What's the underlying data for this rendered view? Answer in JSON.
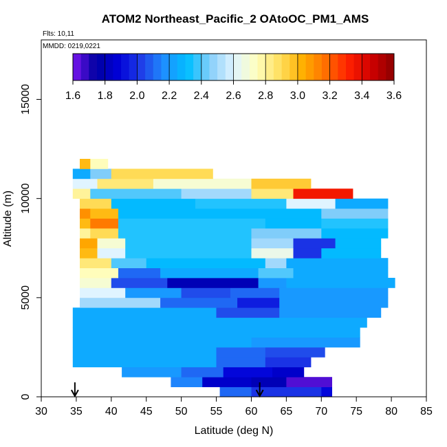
{
  "chart_data": {
    "type": "heatmap",
    "title": "ATOM2 Northeast_Pacific_2 OAtoOC_PM1_AMS",
    "flights_note": "Flts: 10,11",
    "date_note": "MMDD: 0219,0221",
    "xlabel": "Latitude (deg N)",
    "ylabel": "Altitude (m)",
    "xlim": [
      30,
      85
    ],
    "ylim": [
      0,
      18000
    ],
    "x_ticks": [
      "30",
      "35",
      "40",
      "45",
      "50",
      "55",
      "60",
      "65",
      "70",
      "75",
      "80",
      "85"
    ],
    "y_ticks": [
      "0",
      "5000",
      "10000",
      "15000"
    ],
    "colorbar": {
      "min": 1.6,
      "max": 3.6,
      "tick_labels": [
        "1.6",
        "1.8",
        "2.0",
        "2.2",
        "2.4",
        "2.6",
        "2.8",
        "3.0",
        "3.2",
        "3.4",
        "3.6"
      ],
      "colors": [
        "#7b16f0",
        "#0000a0",
        "#0000d8",
        "#2040e8",
        "#1e90ff",
        "#00bfff",
        "#87cefa",
        "#e0f4ff",
        "#ffffc0",
        "#ffe060",
        "#ffb000",
        "#ff7000",
        "#ff2000",
        "#d00000",
        "#8b0000"
      ]
    },
    "layers": [
      {
        "alt": [
          0,
          500
        ],
        "lat": [
          55.5,
          71.5
        ],
        "segments": [
          [
            55.5,
            60,
            2.1
          ],
          [
            60,
            70,
            2.0
          ],
          [
            70,
            71.5,
            1.9
          ]
        ]
      },
      {
        "alt": [
          500,
          1000
        ],
        "lat": [
          48.5,
          71.5
        ],
        "segments": [
          [
            48.5,
            53,
            2.15
          ],
          [
            53,
            60,
            1.85
          ],
          [
            60,
            65,
            1.8
          ],
          [
            65,
            71.5,
            1.65
          ]
        ]
      },
      {
        "alt": [
          1000,
          1500
        ],
        "lat": [
          41.5,
          67.5
        ],
        "segments": [
          [
            41.5,
            50,
            2.2
          ],
          [
            50,
            56,
            2.1
          ],
          [
            56,
            63,
            1.9
          ],
          [
            63,
            67.5,
            1.85
          ]
        ]
      },
      {
        "alt": [
          1500,
          2000
        ],
        "lat": [
          34.5,
          68.5
        ],
        "segments": [
          [
            34.5,
            55,
            2.25
          ],
          [
            55,
            62,
            2.1
          ],
          [
            62,
            68.5,
            2.0
          ]
        ]
      },
      {
        "alt": [
          2000,
          2500
        ],
        "lat": [
          34.5,
          70.5
        ],
        "segments": [
          [
            34.5,
            55,
            2.25
          ],
          [
            55,
            62,
            2.1
          ],
          [
            62,
            70.5,
            2.05
          ]
        ]
      },
      {
        "alt": [
          2500,
          3000
        ],
        "lat": [
          34.5,
          75.5
        ],
        "segments": [
          [
            34.5,
            60,
            2.25
          ],
          [
            60,
            75.5,
            2.2
          ]
        ]
      },
      {
        "alt": [
          3000,
          3500
        ],
        "lat": [
          34.5,
          75.5
        ],
        "segments": [
          [
            34.5,
            75.5,
            2.25
          ]
        ]
      },
      {
        "alt": [
          3500,
          4000
        ],
        "lat": [
          34.5,
          76.5
        ],
        "segments": [
          [
            34.5,
            76.5,
            2.25
          ]
        ]
      },
      {
        "alt": [
          4000,
          4500
        ],
        "lat": [
          34.5,
          78.5
        ],
        "segments": [
          [
            34.5,
            55,
            2.25
          ],
          [
            55,
            64,
            2.05
          ],
          [
            64,
            78.5,
            2.2
          ]
        ]
      },
      {
        "alt": [
          4500,
          5000
        ],
        "lat": [
          35.5,
          79.5
        ],
        "segments": [
          [
            35.5,
            47,
            2.5
          ],
          [
            47,
            58,
            2.1
          ],
          [
            58,
            64,
            1.95
          ],
          [
            64,
            79.5,
            2.2
          ]
        ]
      },
      {
        "alt": [
          5000,
          5500
        ],
        "lat": [
          35.5,
          79.5
        ],
        "segments": [
          [
            35.5,
            42,
            2.6
          ],
          [
            42,
            50,
            2.2
          ],
          [
            50,
            57,
            2.05
          ],
          [
            57,
            64,
            2.1
          ],
          [
            64,
            79.5,
            2.2
          ]
        ]
      },
      {
        "alt": [
          5500,
          6000
        ],
        "lat": [
          35.5,
          80.5
        ],
        "segments": [
          [
            35.5,
            40,
            2.7
          ],
          [
            40,
            48,
            2.05
          ],
          [
            48,
            61,
            1.8
          ],
          [
            61,
            65,
            2.2
          ],
          [
            65,
            80.5,
            2.25
          ]
        ]
      },
      {
        "alt": [
          6000,
          6500
        ],
        "lat": [
          35.5,
          79.5
        ],
        "segments": [
          [
            35.5,
            41,
            2.75
          ],
          [
            41,
            47,
            2.1
          ],
          [
            47,
            61,
            2.25
          ],
          [
            61,
            66,
            2.4
          ],
          [
            66,
            79.5,
            2.25
          ]
        ]
      },
      {
        "alt": [
          6500,
          7000
        ],
        "lat": [
          35.5,
          79.5
        ],
        "segments": [
          [
            35.5,
            40,
            2.85
          ],
          [
            40,
            45,
            2.4
          ],
          [
            45,
            62,
            2.3
          ],
          [
            62,
            65,
            2.5
          ],
          [
            65,
            79.5,
            2.25
          ]
        ]
      },
      {
        "alt": [
          7000,
          7500
        ],
        "lat": [
          35.5,
          78.5
        ],
        "segments": [
          [
            35.5,
            38,
            3.0
          ],
          [
            38,
            42,
            2.6
          ],
          [
            42,
            60,
            2.35
          ],
          [
            60,
            66,
            2.65
          ],
          [
            66,
            70,
            2.0
          ],
          [
            70,
            78.5,
            2.3
          ]
        ]
      },
      {
        "alt": [
          7500,
          8000
        ],
        "lat": [
          35.5,
          78.5
        ],
        "segments": [
          [
            35.5,
            38,
            3.05
          ],
          [
            38,
            42,
            2.7
          ],
          [
            42,
            60,
            2.35
          ],
          [
            60,
            66,
            2.5
          ],
          [
            66,
            72,
            2.0
          ],
          [
            72,
            78.5,
            2.3
          ]
        ]
      },
      {
        "alt": [
          8000,
          8500
        ],
        "lat": [
          35.5,
          79.5
        ],
        "segments": [
          [
            35.5,
            37,
            2.8
          ],
          [
            37,
            41,
            2.9
          ],
          [
            41,
            60,
            2.35
          ],
          [
            60,
            70,
            2.45
          ],
          [
            70,
            79.5,
            2.3
          ]
        ]
      },
      {
        "alt": [
          8500,
          9000
        ],
        "lat": [
          35.5,
          79.5
        ],
        "segments": [
          [
            35.5,
            37,
            3.0
          ],
          [
            37,
            41,
            3.15
          ],
          [
            41,
            62,
            2.35
          ],
          [
            62,
            70,
            2.3
          ],
          [
            70,
            79.5,
            2.35
          ]
        ]
      },
      {
        "alt": [
          9000,
          9500
        ],
        "lat": [
          35.5,
          79.5
        ],
        "segments": [
          [
            35.5,
            37,
            3.1
          ],
          [
            37,
            41,
            3.0
          ],
          [
            41,
            70,
            2.3
          ],
          [
            70,
            79.5,
            2.45
          ]
        ]
      },
      {
        "alt": [
          9500,
          10000
        ],
        "lat": [
          35.5,
          79.5
        ],
        "segments": [
          [
            35.5,
            40,
            2.9
          ],
          [
            40,
            52,
            2.3
          ],
          [
            52,
            65,
            2.35
          ],
          [
            65,
            72,
            2.6
          ],
          [
            72,
            79.5,
            2.25
          ]
        ]
      },
      {
        "alt": [
          10000,
          10500
        ],
        "lat": [
          34.5,
          74.5
        ],
        "segments": [
          [
            34.5,
            37,
            2.8
          ],
          [
            37,
            50,
            2.4
          ],
          [
            50,
            60,
            2.5
          ],
          [
            60,
            66,
            2.85
          ],
          [
            66,
            74.5,
            3.35
          ]
        ]
      },
      {
        "alt": [
          10500,
          11000
        ],
        "lat": [
          34.5,
          68.5
        ],
        "segments": [
          [
            34.5,
            38,
            2.6
          ],
          [
            38,
            46,
            2.85
          ],
          [
            46,
            60,
            2.7
          ],
          [
            60,
            68.5,
            2.95
          ]
        ]
      },
      {
        "alt": [
          11000,
          11500
        ],
        "lat": [
          34.5,
          54.5
        ],
        "segments": [
          [
            34.5,
            37,
            2.25
          ],
          [
            37,
            40,
            2.45
          ],
          [
            40,
            54.5,
            2.9
          ]
        ]
      },
      {
        "alt": [
          11500,
          12000
        ],
        "lat": [
          35.5,
          39.5
        ],
        "segments": [
          [
            35.5,
            37,
            3.0
          ],
          [
            37,
            39.5,
            2.75
          ]
        ]
      }
    ],
    "arrows_lat": [
      34.8,
      61.2
    ]
  }
}
